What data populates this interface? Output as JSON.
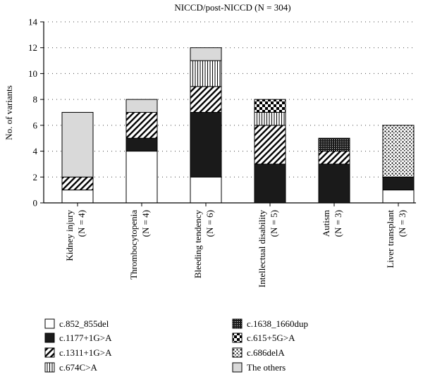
{
  "chart_data": {
    "type": "bar",
    "stacked": true,
    "title": "NICCD/post-NICCD (N = 304)",
    "xlabel": "",
    "ylabel": "No. of variants",
    "ylim": [
      0,
      14
    ],
    "yticks": [
      0,
      2,
      4,
      6,
      8,
      10,
      12,
      14
    ],
    "grid": "horizontal-dotted",
    "legend_position": "bottom",
    "categories": [
      {
        "name": "Kidney injury",
        "n": "(N = 4)"
      },
      {
        "name": "Thrombocytopenia",
        "n": "(N = 4)"
      },
      {
        "name": "Bleeding tendency",
        "n": "(N = 6)"
      },
      {
        "name": "Intellectual disability",
        "n": "(N = 5)"
      },
      {
        "name": "Autism",
        "n": "(N = 3)"
      },
      {
        "name": "Liver transplant",
        "n": "(N = 3)"
      }
    ],
    "series": [
      {
        "name": "c.852_855del",
        "pattern": "white",
        "values": [
          1,
          4,
          2,
          0,
          0,
          1
        ]
      },
      {
        "name": "c.1177+1G>A",
        "pattern": "black",
        "values": [
          0,
          1,
          5,
          3,
          3,
          1
        ]
      },
      {
        "name": "c.1311+1G>A",
        "pattern": "diagonal",
        "values": [
          1,
          2,
          2,
          3,
          1,
          0
        ]
      },
      {
        "name": "c.674C>A",
        "pattern": "vertical",
        "values": [
          0,
          0,
          2,
          1,
          0,
          0
        ]
      },
      {
        "name": "c.1638_1660dup",
        "pattern": "fine-dots",
        "values": [
          0,
          0,
          0,
          0,
          1,
          0
        ]
      },
      {
        "name": "c.615+5G>A",
        "pattern": "checker",
        "values": [
          0,
          0,
          0,
          1,
          0,
          0
        ]
      },
      {
        "name": "c.686delA",
        "pattern": "coarse-dots",
        "values": [
          0,
          0,
          0,
          0,
          0,
          4
        ]
      },
      {
        "name": "The others",
        "pattern": "gray",
        "values": [
          5,
          1,
          1,
          0,
          0,
          0
        ]
      }
    ],
    "colors": {
      "gray": "#d9d9d9",
      "black": "#1a1a1a",
      "axis": "#000000"
    }
  }
}
